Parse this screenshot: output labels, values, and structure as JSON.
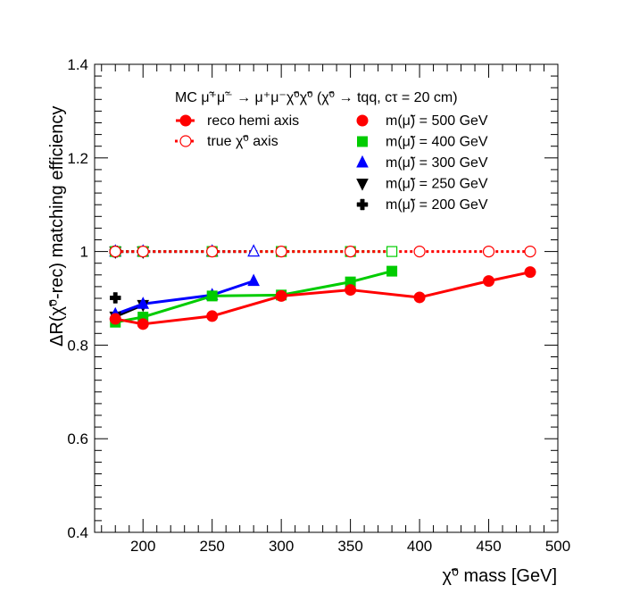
{
  "chart_data": {
    "type": "line",
    "xlabel": "χ̃⁰ mass [GeV]",
    "ylabel": "ΔR(χ̃⁰-rec) matching efficiency",
    "xlim": [
      165,
      500
    ],
    "ylim": [
      0.4,
      1.4
    ],
    "x_ticks": [
      200,
      250,
      300,
      350,
      400,
      450,
      500
    ],
    "x_tick_labels": [
      "200",
      "250",
      "300",
      "350",
      "400",
      "450",
      "500"
    ],
    "y_ticks": [
      0.4,
      0.6,
      0.8,
      1.0,
      1.2,
      1.4
    ],
    "y_tick_labels": [
      "0.4",
      "0.6",
      "0.8",
      "1",
      "1.2",
      "1.4"
    ],
    "grid": false,
    "legend_title": "MC μ̃⁺μ̃⁻ → μ⁺μ⁻χ̃⁰χ̃⁰ (χ̃⁰ → tqq, cτ = 20 cm)",
    "legend_style_entries": [
      {
        "label": "reco hemi axis",
        "style": "solid-filled"
      },
      {
        "label": "true χ̃⁰ axis",
        "style": "dotted-open"
      }
    ],
    "legend_placement": "top-right",
    "series": [
      {
        "name": "m(μ̃) = 500 GeV",
        "color": "#ff0000",
        "marker": "circle",
        "x": [
          180,
          200,
          250,
          300,
          350,
          400,
          450,
          480
        ],
        "reco": [
          0.856,
          0.845,
          0.862,
          0.905,
          0.918,
          0.902,
          0.937,
          0.956
        ],
        "truth": [
          1.0,
          1.0,
          1.0,
          1.0,
          1.0,
          1.0,
          1.0,
          1.0
        ]
      },
      {
        "name": "m(μ̃) = 400 GeV",
        "color": "#00cc00",
        "marker": "square",
        "x": [
          180,
          200,
          250,
          300,
          350,
          380
        ],
        "reco": [
          0.849,
          0.86,
          0.905,
          0.907,
          0.935,
          0.958
        ],
        "truth": [
          1.0,
          1.0,
          1.0,
          1.0,
          1.0,
          1.0
        ]
      },
      {
        "name": "m(μ̃) = 300 GeV",
        "color": "#0000ff",
        "marker": "triangle-up",
        "x": [
          180,
          200,
          250,
          280
        ],
        "reco": [
          0.866,
          0.888,
          0.907,
          0.937
        ],
        "truth": [
          1.0,
          1.0,
          1.0,
          1.0
        ]
      },
      {
        "name": "m(μ̃) = 250 GeV",
        "color": "#000000",
        "marker": "triangle-down",
        "x": [
          180,
          200
        ],
        "reco": [
          0.861,
          0.886
        ],
        "truth": [
          1.0,
          1.0
        ]
      },
      {
        "name": "m(μ̃) = 200 GeV",
        "color": "#000000",
        "marker": "cross",
        "x": [
          180
        ],
        "reco": [
          0.901
        ],
        "truth": [
          1.0
        ]
      }
    ]
  }
}
